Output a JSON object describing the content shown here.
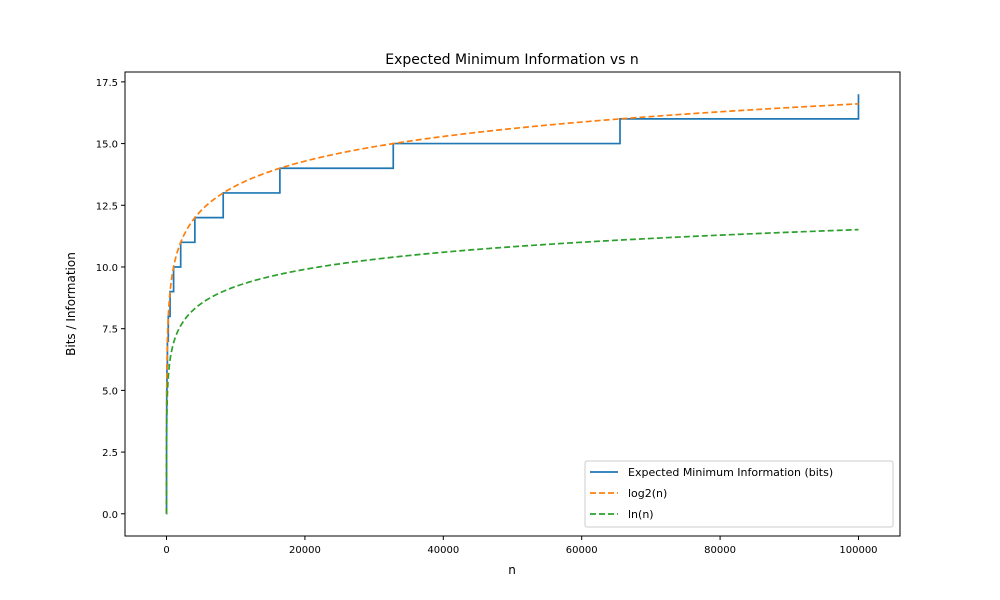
{
  "chart_data": {
    "type": "line",
    "title": "Expected Minimum Information vs n",
    "xlabel": "n",
    "ylabel": "Bits / Information",
    "xlim": [
      -6000,
      106000
    ],
    "ylim": [
      -0.9,
      17.9
    ],
    "xticks": [
      0,
      20000,
      40000,
      60000,
      80000,
      100000
    ],
    "xtick_labels": [
      "0",
      "20000",
      "40000",
      "60000",
      "80000",
      "100000"
    ],
    "yticks": [
      0.0,
      2.5,
      5.0,
      7.5,
      10.0,
      12.5,
      15.0,
      17.5
    ],
    "ytick_labels": [
      "0.0",
      "2.5",
      "5.0",
      "7.5",
      "10.0",
      "12.5",
      "15.0",
      "17.5"
    ],
    "grid": false,
    "legend_position": "lower-right",
    "series": [
      {
        "name": "Expected Minimum Information (bits)",
        "style": "step",
        "dash": "solid",
        "color": "#1f77b4",
        "x": [
          1,
          2,
          4,
          8,
          16,
          32,
          64,
          128,
          256,
          512,
          1024,
          2048,
          4096,
          8192,
          16384,
          32768,
          65536,
          100000
        ],
        "y": [
          0,
          1,
          2,
          3,
          4,
          5,
          6,
          7,
          8,
          9,
          10,
          11,
          12,
          13,
          14,
          15,
          16,
          17
        ]
      },
      {
        "name": "log2(n)",
        "style": "line",
        "dash": "dashed",
        "color": "#ff7f0e",
        "x": [
          1,
          2,
          5,
          10,
          50,
          100,
          500,
          1000,
          2000,
          5000,
          10000,
          20000,
          30000,
          40000,
          50000,
          60000,
          70000,
          80000,
          90000,
          100000
        ],
        "y": [
          0,
          1,
          2.32,
          3.32,
          5.64,
          6.64,
          8.97,
          9.97,
          10.97,
          12.29,
          13.29,
          14.29,
          14.87,
          15.29,
          15.61,
          15.87,
          16.1,
          16.29,
          16.46,
          16.61
        ]
      },
      {
        "name": "ln(n)",
        "style": "line",
        "dash": "dashed",
        "color": "#2ca02c",
        "x": [
          1,
          2,
          5,
          10,
          50,
          100,
          500,
          1000,
          2000,
          5000,
          10000,
          20000,
          30000,
          40000,
          50000,
          60000,
          70000,
          80000,
          90000,
          100000
        ],
        "y": [
          0,
          0.69,
          1.61,
          2.3,
          3.91,
          4.61,
          6.21,
          6.91,
          7.6,
          8.52,
          9.21,
          9.9,
          10.31,
          10.6,
          10.82,
          11.0,
          11.16,
          11.29,
          11.41,
          11.51
        ]
      }
    ]
  }
}
